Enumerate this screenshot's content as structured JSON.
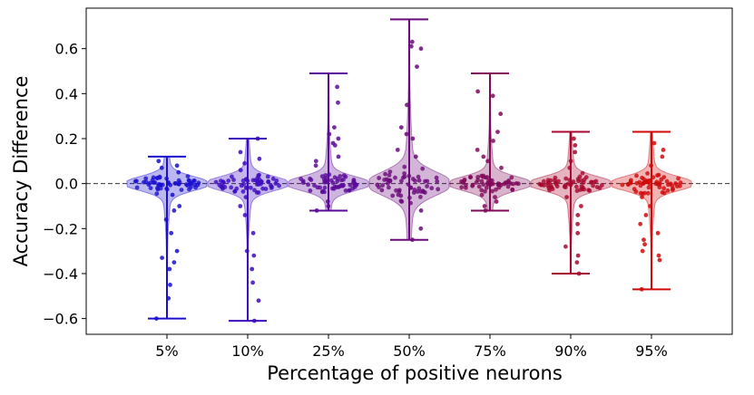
{
  "chart_data": {
    "type": "violin",
    "title": "",
    "xlabel": "Percentage of positive neurons",
    "ylabel": "Accuracy Difference",
    "ylim": [
      -0.67,
      0.78
    ],
    "yticks": [
      -0.6,
      -0.4,
      -0.2,
      0.0,
      0.2,
      0.4,
      0.6
    ],
    "ytick_labels": [
      "−0.6",
      "−0.4",
      "−0.2",
      "0.0",
      "0.2",
      "0.4",
      "0.6"
    ],
    "reference_line": 0.0,
    "categories": [
      "5%",
      "10%",
      "25%",
      "50%",
      "75%",
      "90%",
      "95%"
    ],
    "series": [
      {
        "name": "5%",
        "color": "#1a0fd0",
        "min": -0.6,
        "max": 0.12,
        "spread": 0.03,
        "outliers": [
          0.1,
          0.08,
          0.07,
          0.05,
          -0.05,
          -0.1,
          -0.12,
          -0.16,
          -0.22,
          -0.3,
          -0.33,
          -0.35,
          -0.38,
          -0.45,
          -0.51,
          -0.6
        ]
      },
      {
        "name": "10%",
        "color": "#3d0bc0",
        "min": -0.61,
        "max": 0.2,
        "spread": 0.03,
        "outliers": [
          0.2,
          0.14,
          0.11,
          0.09,
          0.06,
          -0.06,
          -0.1,
          -0.14,
          -0.22,
          -0.3,
          -0.32,
          -0.38,
          -0.44,
          -0.52,
          -0.61
        ]
      },
      {
        "name": "25%",
        "color": "#5a0a98",
        "min": -0.12,
        "max": 0.49,
        "spread": 0.03,
        "outliers": [
          0.43,
          0.36,
          0.25,
          0.22,
          0.2,
          0.18,
          0.17,
          0.12,
          0.1,
          0.08,
          -0.08,
          -0.1,
          -0.12
        ]
      },
      {
        "name": "50%",
        "color": "#6a0a7a",
        "min": -0.25,
        "max": 0.73,
        "spread": 0.05,
        "outliers": [
          0.63,
          0.61,
          0.6,
          0.52,
          0.35,
          0.25,
          0.22,
          0.2,
          0.15,
          0.12,
          -0.08,
          -0.12,
          -0.2,
          -0.25
        ]
      },
      {
        "name": "75%",
        "color": "#80095a",
        "min": -0.12,
        "max": 0.49,
        "spread": 0.03,
        "outliers": [
          0.41,
          0.39,
          0.31,
          0.23,
          0.19,
          0.15,
          0.12,
          0.1,
          0.07,
          -0.06,
          -0.08,
          -0.1,
          -0.12
        ]
      },
      {
        "name": "90%",
        "color": "#a8082e",
        "min": -0.4,
        "max": 0.23,
        "spread": 0.03,
        "outliers": [
          0.2,
          0.17,
          0.14,
          0.1,
          0.07,
          -0.06,
          -0.1,
          -0.14,
          -0.18,
          -0.22,
          -0.28,
          -0.32,
          -0.35,
          -0.4
        ]
      },
      {
        "name": "95%",
        "color": "#d00a0a",
        "min": -0.47,
        "max": 0.23,
        "spread": 0.03,
        "outliers": [
          0.18,
          0.15,
          0.12,
          0.08,
          -0.06,
          -0.1,
          -0.14,
          -0.18,
          -0.22,
          -0.25,
          -0.27,
          -0.3,
          -0.32,
          -0.34,
          -0.47
        ]
      }
    ]
  }
}
